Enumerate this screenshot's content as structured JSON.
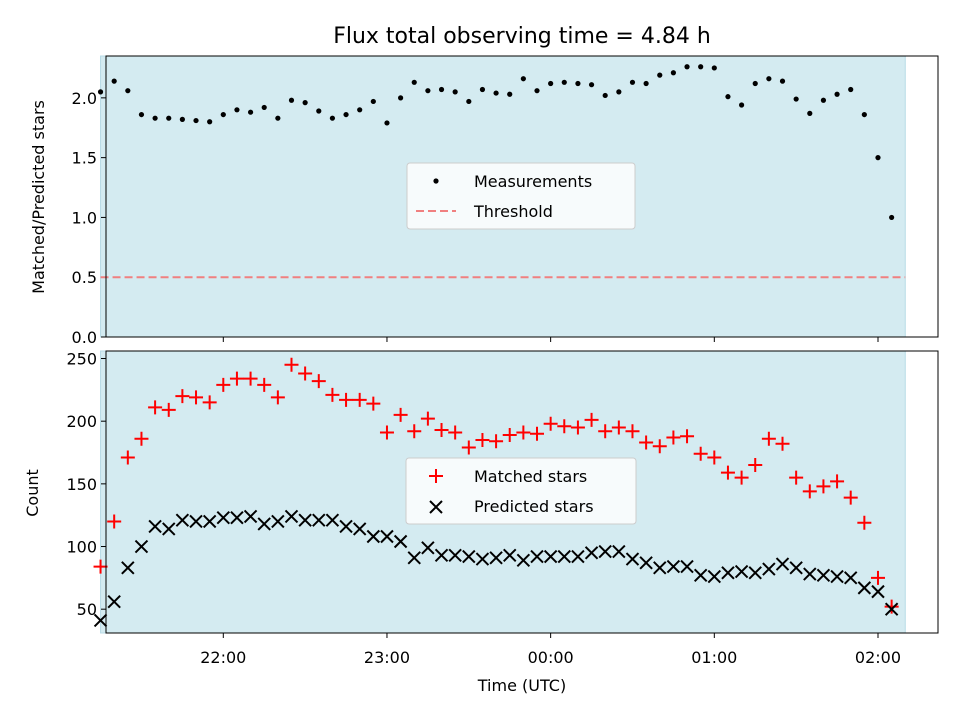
{
  "chart_data": [
    {
      "type": "scatter",
      "title": "Flux total observing time = 4.84 h",
      "ylabel": "Matched/Predicted stars",
      "ylim": [
        0,
        2.35
      ],
      "yticks": [
        "0.0",
        "0.5",
        "1.0",
        "1.5",
        "2.0"
      ],
      "xlim": [
        "21:17",
        "02:22"
      ],
      "observing_span": [
        "21:15",
        "02:10"
      ],
      "shade_color": "#d4ebf1",
      "threshold": {
        "name": "Threshold",
        "value": 0.5,
        "color": "#f08080",
        "style": "dashed"
      },
      "legend": {
        "position": "center",
        "entries": [
          "Measurements",
          "Threshold"
        ]
      },
      "series": [
        {
          "name": "Measurements",
          "color": "#000000",
          "marker": "dot",
          "x": [
            "21:15",
            "21:20",
            "21:25",
            "21:30",
            "21:35",
            "21:40",
            "21:45",
            "21:50",
            "21:55",
            "22:00",
            "22:05",
            "22:10",
            "22:15",
            "22:20",
            "22:25",
            "22:30",
            "22:35",
            "22:40",
            "22:45",
            "22:50",
            "22:55",
            "23:00",
            "23:05",
            "23:10",
            "23:15",
            "23:20",
            "23:25",
            "23:30",
            "23:35",
            "23:40",
            "23:45",
            "23:50",
            "23:55",
            "00:00",
            "00:05",
            "00:10",
            "00:15",
            "00:20",
            "00:25",
            "00:30",
            "00:35",
            "00:40",
            "00:45",
            "00:50",
            "00:55",
            "01:00",
            "01:05",
            "01:10",
            "01:15",
            "01:20",
            "01:25",
            "01:30",
            "01:35",
            "01:40",
            "01:45",
            "01:50",
            "01:55",
            "02:00",
            "02:05"
          ],
          "y": [
            2.05,
            2.14,
            2.06,
            1.86,
            1.83,
            1.83,
            1.82,
            1.81,
            1.8,
            1.86,
            1.9,
            1.88,
            1.92,
            1.83,
            1.98,
            1.96,
            1.89,
            1.83,
            1.86,
            1.9,
            1.97,
            1.79,
            2.0,
            2.13,
            2.06,
            2.07,
            2.05,
            1.97,
            2.07,
            2.04,
            2.03,
            2.16,
            2.06,
            2.12,
            2.13,
            2.12,
            2.11,
            2.02,
            2.05,
            2.13,
            2.12,
            2.19,
            2.21,
            2.26,
            2.26,
            2.25,
            2.01,
            1.94,
            2.12,
            2.16,
            2.14,
            1.99,
            1.87,
            1.98,
            2.03,
            2.07,
            1.86,
            1.5,
            1.0
          ]
        }
      ]
    },
    {
      "type": "scatter",
      "ylabel": "Count",
      "xlabel": "Time (UTC)",
      "xticks": [
        "22:00",
        "23:00",
        "00:00",
        "01:00",
        "02:00"
      ],
      "xlim": [
        "21:17",
        "02:22"
      ],
      "ylim": [
        31,
        256
      ],
      "yticks": [
        "50",
        "100",
        "150",
        "200",
        "250"
      ],
      "observing_span": [
        "21:15",
        "02:10"
      ],
      "shade_color": "#d4ebf1",
      "legend": {
        "position": "center",
        "entries": [
          "Matched stars",
          "Predicted stars"
        ]
      },
      "series": [
        {
          "name": "Matched stars",
          "color": "#ff0000",
          "marker": "plus",
          "x": [
            "21:15",
            "21:20",
            "21:25",
            "21:30",
            "21:35",
            "21:40",
            "21:45",
            "21:50",
            "21:55",
            "22:00",
            "22:05",
            "22:10",
            "22:15",
            "22:20",
            "22:25",
            "22:30",
            "22:35",
            "22:40",
            "22:45",
            "22:50",
            "22:55",
            "23:00",
            "23:05",
            "23:10",
            "23:15",
            "23:20",
            "23:25",
            "23:30",
            "23:35",
            "23:40",
            "23:45",
            "23:50",
            "23:55",
            "00:00",
            "00:05",
            "00:10",
            "00:15",
            "00:20",
            "00:25",
            "00:30",
            "00:35",
            "00:40",
            "00:45",
            "00:50",
            "00:55",
            "01:00",
            "01:05",
            "01:10",
            "01:15",
            "01:20",
            "01:25",
            "01:30",
            "01:35",
            "01:40",
            "01:45",
            "01:50",
            "01:55",
            "02:00",
            "02:05"
          ],
          "y": [
            84,
            120,
            171,
            186,
            211,
            209,
            220,
            219,
            215,
            229,
            234,
            234,
            229,
            219,
            245,
            238,
            232,
            221,
            217,
            217,
            214,
            191,
            205,
            192,
            202,
            193,
            191,
            179,
            185,
            184,
            189,
            191,
            190,
            198,
            196,
            195,
            201,
            192,
            195,
            192,
            183,
            180,
            187,
            188,
            174,
            171,
            159,
            155,
            165,
            186,
            182,
            155,
            144,
            148,
            152,
            139,
            119,
            75,
            52
          ]
        },
        {
          "name": "Predicted stars",
          "color": "#000000",
          "marker": "x",
          "x": [
            "21:15",
            "21:20",
            "21:25",
            "21:30",
            "21:35",
            "21:40",
            "21:45",
            "21:50",
            "21:55",
            "22:00",
            "22:05",
            "22:10",
            "22:15",
            "22:20",
            "22:25",
            "22:30",
            "22:35",
            "22:40",
            "22:45",
            "22:50",
            "22:55",
            "23:00",
            "23:05",
            "23:10",
            "23:15",
            "23:20",
            "23:25",
            "23:30",
            "23:35",
            "23:40",
            "23:45",
            "23:50",
            "23:55",
            "00:00",
            "00:05",
            "00:10",
            "00:15",
            "00:20",
            "00:25",
            "00:30",
            "00:35",
            "00:40",
            "00:45",
            "00:50",
            "00:55",
            "01:00",
            "01:05",
            "01:10",
            "01:15",
            "01:20",
            "01:25",
            "01:30",
            "01:35",
            "01:40",
            "01:45",
            "01:50",
            "01:55",
            "02:00",
            "02:05"
          ],
          "y": [
            41,
            56,
            83,
            100,
            116,
            114,
            121,
            120,
            120,
            123,
            123,
            124,
            118,
            120,
            124,
            121,
            121,
            121,
            116,
            114,
            108,
            108,
            104,
            91,
            99,
            93,
            93,
            92,
            90,
            91,
            93,
            89,
            92,
            92,
            92,
            92,
            95,
            96,
            96,
            90,
            87,
            83,
            84,
            84,
            77,
            76,
            79,
            80,
            79,
            82,
            86,
            83,
            78,
            77,
            76,
            75,
            67,
            64,
            50
          ]
        }
      ]
    }
  ]
}
